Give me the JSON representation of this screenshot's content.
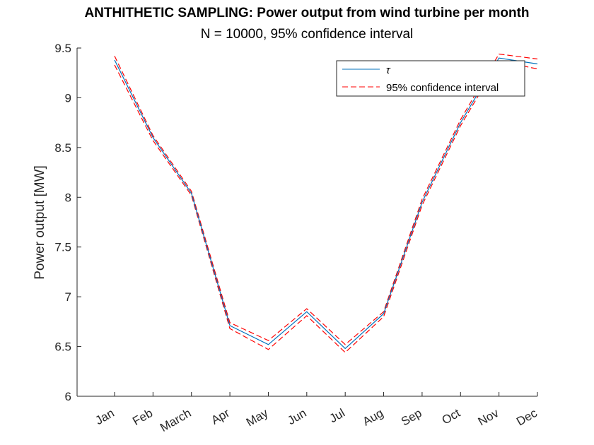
{
  "chart_data": {
    "type": "line",
    "title": "ANTHITHETIC SAMPLING: Power output from wind turbine per month",
    "subtitle": "N = 10000, 95% confidence interval",
    "xlabel": "",
    "ylabel": "Power output [MW]",
    "ylim": [
      6,
      9.5
    ],
    "yticks": [
      6,
      6.5,
      7,
      7.5,
      8,
      8.5,
      9,
      9.5
    ],
    "categories": [
      "Jan",
      "Feb",
      "March",
      "Apr",
      "May",
      "Jun",
      "Jul",
      "Aug",
      "Sep",
      "Oct",
      "Nov",
      "Dec"
    ],
    "grid": false,
    "legend_position": "top-right",
    "series": [
      {
        "name": "τ",
        "color": "#0072BD",
        "style": "solid",
        "values": [
          9.38,
          8.6,
          8.04,
          6.71,
          6.52,
          6.85,
          6.48,
          6.83,
          7.95,
          8.75,
          9.4,
          9.34
        ]
      },
      {
        "name": "95% confidence interval",
        "color": "#FF0000",
        "style": "dashed",
        "values": [
          9.42,
          8.62,
          8.06,
          6.74,
          6.56,
          6.88,
          6.52,
          6.85,
          7.98,
          8.78,
          9.44,
          9.39
        ]
      },
      {
        "name": "",
        "color": "#FF0000",
        "style": "dashed",
        "values": [
          9.33,
          8.57,
          8.02,
          6.68,
          6.47,
          6.81,
          6.44,
          6.8,
          7.92,
          8.72,
          9.37,
          9.29
        ]
      }
    ]
  }
}
